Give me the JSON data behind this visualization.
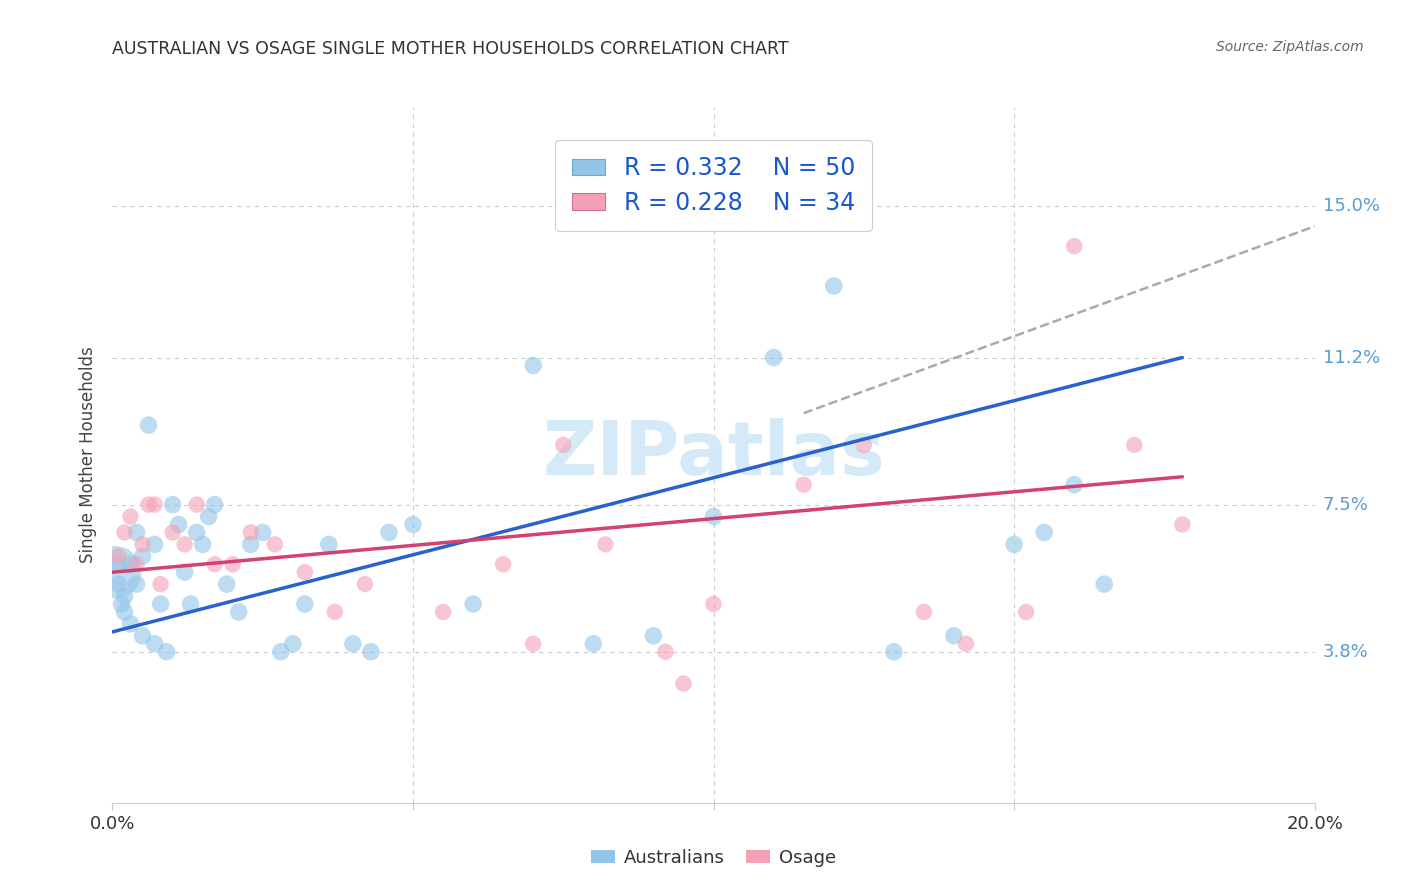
{
  "title": "AUSTRALIAN VS OSAGE SINGLE MOTHER HOUSEHOLDS CORRELATION CHART",
  "source": "Source: ZipAtlas.com",
  "ylabel": "Single Mother Households",
  "xlim": [
    0.0,
    0.2
  ],
  "ylim": [
    0.0,
    0.175
  ],
  "ytick_vals": [
    0.038,
    0.075,
    0.112,
    0.15
  ],
  "ytick_labels": [
    "3.8%",
    "7.5%",
    "11.2%",
    "15.0%"
  ],
  "xtick_vals": [
    0.0,
    0.05,
    0.1,
    0.15,
    0.2
  ],
  "xtick_labels": [
    "0.0%",
    "",
    "",
    "",
    "20.0%"
  ],
  "grid_color": "#cccccc",
  "bg_color": "#ffffff",
  "aus_color": "#92C5E8",
  "osage_color": "#F4A0B5",
  "aus_line_color": "#2962CC",
  "osage_line_color": "#D44070",
  "dash_color": "#aaaaaa",
  "watermark_color": "#d0e8f8",
  "right_tick_color": "#5B9BD5",
  "aus_R": "0.332",
  "aus_N": "50",
  "osage_R": "0.228",
  "osage_N": "34",
  "australians_x": [
    0.0005,
    0.001,
    0.001,
    0.0015,
    0.002,
    0.002,
    0.003,
    0.003,
    0.004,
    0.004,
    0.005,
    0.005,
    0.006,
    0.007,
    0.007,
    0.008,
    0.009,
    0.01,
    0.011,
    0.012,
    0.013,
    0.014,
    0.015,
    0.016,
    0.017,
    0.019,
    0.021,
    0.023,
    0.025,
    0.028,
    0.03,
    0.032,
    0.036,
    0.04,
    0.043,
    0.046,
    0.05,
    0.06,
    0.07,
    0.08,
    0.09,
    0.1,
    0.11,
    0.12,
    0.13,
    0.14,
    0.15,
    0.155,
    0.16,
    0.165
  ],
  "australians_y": [
    0.058,
    0.06,
    0.055,
    0.05,
    0.048,
    0.052,
    0.045,
    0.06,
    0.068,
    0.055,
    0.042,
    0.062,
    0.095,
    0.04,
    0.065,
    0.05,
    0.038,
    0.075,
    0.07,
    0.058,
    0.05,
    0.068,
    0.065,
    0.072,
    0.075,
    0.055,
    0.048,
    0.065,
    0.068,
    0.038,
    0.04,
    0.05,
    0.065,
    0.04,
    0.038,
    0.068,
    0.07,
    0.05,
    0.11,
    0.04,
    0.042,
    0.072,
    0.112,
    0.13,
    0.038,
    0.042,
    0.065,
    0.068,
    0.08,
    0.055
  ],
  "osage_x": [
    0.001,
    0.002,
    0.003,
    0.004,
    0.005,
    0.006,
    0.007,
    0.008,
    0.01,
    0.012,
    0.014,
    0.017,
    0.02,
    0.023,
    0.027,
    0.032,
    0.037,
    0.042,
    0.055,
    0.065,
    0.07,
    0.075,
    0.082,
    0.092,
    0.095,
    0.1,
    0.115,
    0.125,
    0.135,
    0.142,
    0.152,
    0.16,
    0.17,
    0.178
  ],
  "osage_y": [
    0.062,
    0.068,
    0.072,
    0.06,
    0.065,
    0.075,
    0.075,
    0.055,
    0.068,
    0.065,
    0.075,
    0.06,
    0.06,
    0.068,
    0.065,
    0.058,
    0.048,
    0.055,
    0.048,
    0.06,
    0.04,
    0.09,
    0.065,
    0.038,
    0.03,
    0.05,
    0.08,
    0.09,
    0.048,
    0.04,
    0.048,
    0.14,
    0.09,
    0.07
  ],
  "aus_line_x0": 0.0,
  "aus_line_y0": 0.043,
  "aus_line_x1": 0.178,
  "aus_line_y1": 0.112,
  "osage_line_x0": 0.0,
  "osage_line_y0": 0.058,
  "osage_line_x1": 0.178,
  "osage_line_y1": 0.082,
  "dash_line_x0": 0.115,
  "dash_line_y0": 0.098,
  "dash_line_x1": 0.2,
  "dash_line_y1": 0.145
}
